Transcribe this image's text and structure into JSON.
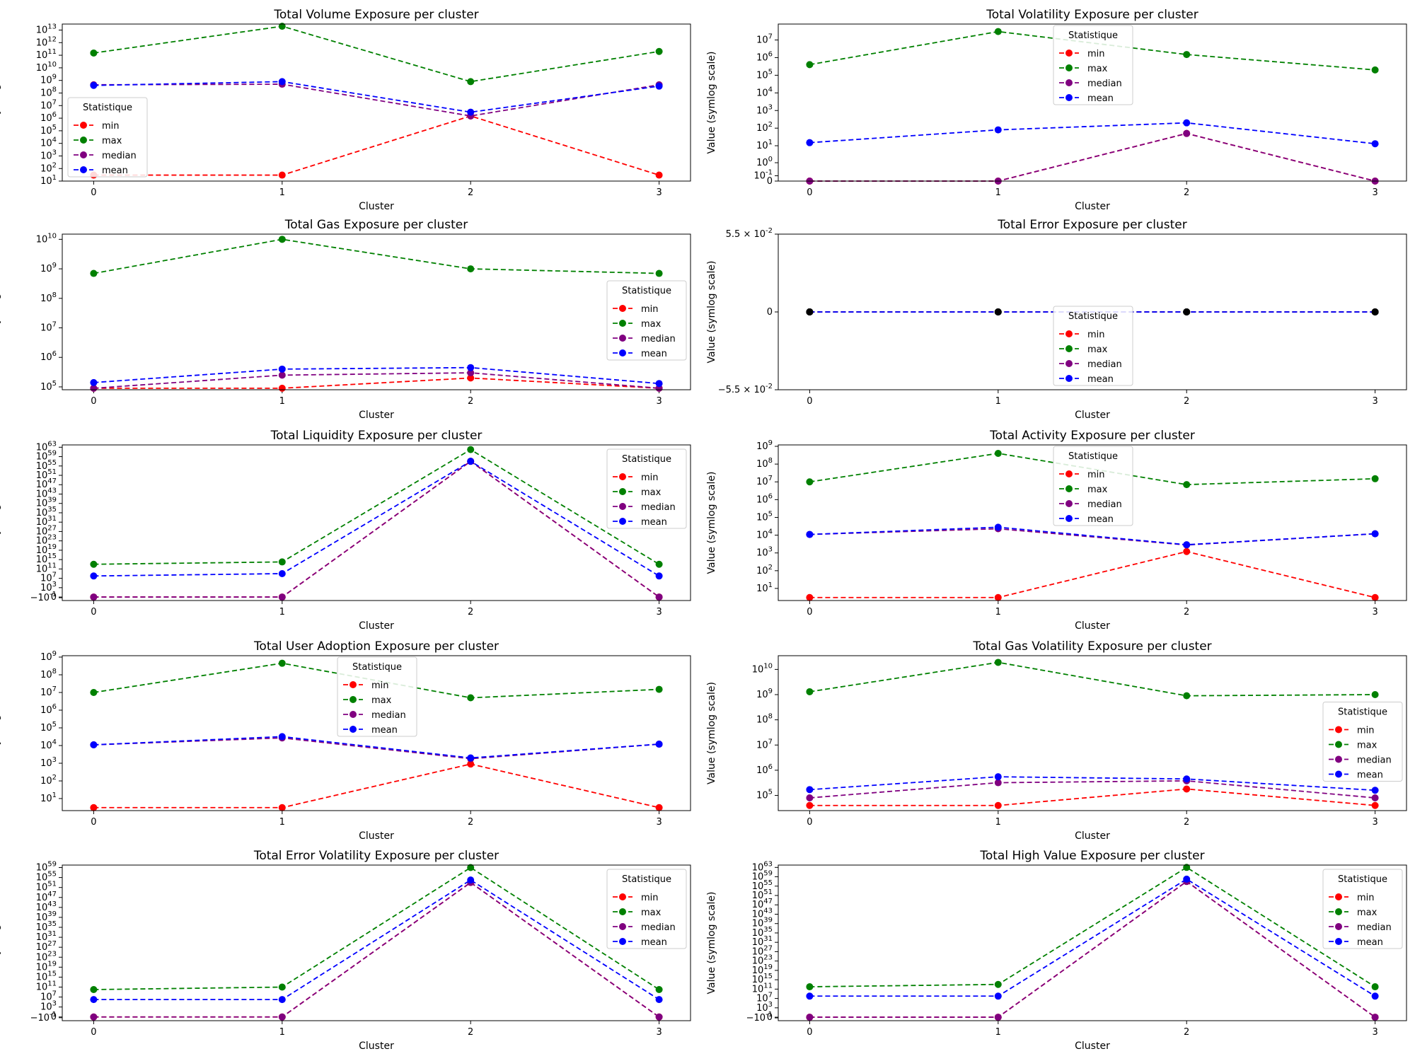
{
  "legend_title": "Statistique",
  "stat_names": [
    "min",
    "max",
    "median",
    "mean"
  ],
  "colors": {
    "min": "#ff0000",
    "max": "#008000",
    "median": "#800080",
    "mean": "#0000ff"
  },
  "chart_data": [
    {
      "type": "line",
      "title": "Total Volume Exposure per cluster",
      "xlabel": "Cluster",
      "ylabel": "Value (symlog scale)",
      "x": [
        0,
        1,
        2,
        3
      ],
      "yscale": "symlog",
      "ylim": [
        10,
        30000000000000
      ],
      "yticks": [
        "10^1",
        "10^2",
        "10^3",
        "10^4",
        "10^5",
        "10^6",
        "10^7",
        "10^8",
        "10^9",
        "10^10",
        "10^11",
        "10^12",
        "10^13"
      ],
      "legend_loc": "lower-left",
      "series": [
        {
          "name": "min",
          "values": [
            30,
            30,
            1500000,
            30
          ]
        },
        {
          "name": "max",
          "values": [
            150000000000,
            20000000000000,
            800000000,
            200000000000
          ]
        },
        {
          "name": "median",
          "values": [
            450000000,
            500000000,
            1500000,
            450000000
          ]
        },
        {
          "name": "mean",
          "values": [
            400000000,
            800000000,
            3000000,
            350000000
          ]
        }
      ]
    },
    {
      "type": "line",
      "title": "Total Volatility Exposure per cluster",
      "xlabel": "Cluster",
      "ylabel": "Value (symlog scale)",
      "x": [
        0,
        1,
        2,
        3
      ],
      "yscale": "symlog",
      "ylim": [
        0,
        80000000
      ],
      "yticks": [
        "0",
        "10^-1",
        "10^0",
        "10^1",
        "10^2",
        "10^3",
        "10^4",
        "10^5",
        "10^6",
        "10^7"
      ],
      "legend_loc": "top-center",
      "series": [
        {
          "name": "min",
          "values": [
            0,
            0,
            50,
            0
          ]
        },
        {
          "name": "max",
          "values": [
            400000,
            30000000,
            1500000,
            200000
          ]
        },
        {
          "name": "median",
          "values": [
            0,
            0,
            50,
            0
          ]
        },
        {
          "name": "mean",
          "values": [
            15,
            80,
            200,
            13
          ]
        }
      ]
    },
    {
      "type": "line",
      "title": "Total Gas Exposure per cluster",
      "xlabel": "Cluster",
      "ylabel": "Value (symlog scale)",
      "x": [
        0,
        1,
        2,
        3
      ],
      "yscale": "symlog",
      "ylim": [
        80000,
        15000000000
      ],
      "yticks": [
        "10^5",
        "10^6",
        "10^7",
        "10^8",
        "10^9",
        "10^10"
      ],
      "legend_loc": "center-right",
      "series": [
        {
          "name": "min",
          "values": [
            90000,
            90000,
            200000,
            90000
          ]
        },
        {
          "name": "max",
          "values": [
            700000000,
            10000000000,
            1000000000,
            700000000
          ]
        },
        {
          "name": "median",
          "values": [
            90000,
            250000,
            300000,
            90000
          ]
        },
        {
          "name": "mean",
          "values": [
            140000,
            400000,
            450000,
            130000
          ]
        }
      ]
    },
    {
      "type": "line",
      "title": "Total Error Exposure per cluster",
      "xlabel": "Cluster",
      "ylabel": "Value (symlog scale)",
      "x": [
        0,
        1,
        2,
        3
      ],
      "yscale": "linear",
      "ylim": [
        -0.055,
        0.055
      ],
      "yticks": [
        "−5.5 × 10^-2",
        "0",
        "5.5 × 10^-2"
      ],
      "legend_loc": "lower-center",
      "series": [
        {
          "name": "min",
          "values": [
            0,
            0,
            0,
            0
          ]
        },
        {
          "name": "max",
          "values": [
            0,
            0,
            0,
            0
          ]
        },
        {
          "name": "median",
          "values": [
            0,
            0,
            0,
            0
          ]
        },
        {
          "name": "mean",
          "values": [
            0,
            0,
            0,
            0
          ]
        }
      ]
    },
    {
      "type": "line",
      "title": "Total Liquidity Exposure per cluster",
      "xlabel": "Cluster",
      "ylabel": "Value (symlog scale)",
      "x": [
        0,
        1,
        2,
        3
      ],
      "yscale": "symlog",
      "ylim": [
        -3,
        1e+64
      ],
      "yticks": [
        "−10^-1",
        "0",
        "10^3",
        "10^7",
        "10^11",
        "10^15",
        "10^19",
        "10^23",
        "10^27",
        "10^31",
        "10^35",
        "10^39",
        "10^43",
        "10^47",
        "10^51",
        "10^55",
        "10^59",
        "10^63"
      ],
      "legend_loc": "top-right",
      "series": [
        {
          "name": "min",
          "values": [
            0,
            0,
            1e+57,
            0
          ]
        },
        {
          "name": "max",
          "values": [
            10000000000000.0,
            100000000000000.0,
            1e+62,
            10000000000000.0
          ]
        },
        {
          "name": "median",
          "values": [
            0,
            0,
            1e+57,
            0
          ]
        },
        {
          "name": "mean",
          "values": [
            100000000.0,
            1000000000.0,
            1e+57,
            100000000.0
          ]
        }
      ]
    },
    {
      "type": "line",
      "title": "Total Activity Exposure per cluster",
      "xlabel": "Cluster",
      "ylabel": "Value (symlog scale)",
      "x": [
        0,
        1,
        2,
        3
      ],
      "yscale": "symlog",
      "ylim": [
        2,
        1200000000
      ],
      "yticks": [
        "10^1",
        "10^2",
        "10^3",
        "10^4",
        "10^5",
        "10^6",
        "10^7",
        "10^8",
        "10^9"
      ],
      "legend_loc": "top-center",
      "series": [
        {
          "name": "min",
          "values": [
            3,
            3,
            1200,
            3
          ]
        },
        {
          "name": "max",
          "values": [
            10000000,
            400000000,
            7000000,
            15000000
          ]
        },
        {
          "name": "median",
          "values": [
            11000,
            23000,
            2800,
            12000
          ]
        },
        {
          "name": "mean",
          "values": [
            11000,
            28000,
            2900,
            12000
          ]
        }
      ]
    },
    {
      "type": "line",
      "title": "Total User Adoption Exposure per cluster",
      "xlabel": "Cluster",
      "ylabel": "Value (symlog scale)",
      "x": [
        0,
        1,
        2,
        3
      ],
      "yscale": "symlog",
      "ylim": [
        2,
        1200000000
      ],
      "yticks": [
        "10^1",
        "10^2",
        "10^3",
        "10^4",
        "10^5",
        "10^6",
        "10^7",
        "10^8",
        "10^9"
      ],
      "legend_loc": "top-center",
      "series": [
        {
          "name": "min",
          "values": [
            3,
            3,
            900,
            3
          ]
        },
        {
          "name": "max",
          "values": [
            10000000,
            450000000,
            5000000,
            15000000
          ]
        },
        {
          "name": "median",
          "values": [
            11000,
            27000,
            1800,
            12000
          ]
        },
        {
          "name": "mean",
          "values": [
            11000,
            32000,
            2000,
            12000
          ]
        }
      ]
    },
    {
      "type": "line",
      "title": "Total Gas Volatility Exposure per cluster",
      "xlabel": "Cluster",
      "ylabel": "Value (symlog scale)",
      "x": [
        0,
        1,
        2,
        3
      ],
      "yscale": "symlog",
      "ylim": [
        25000,
        35000000000
      ],
      "yticks": [
        "10^5",
        "10^6",
        "10^7",
        "10^8",
        "10^9",
        "10^10"
      ],
      "legend_loc": "center-right",
      "series": [
        {
          "name": "min",
          "values": [
            40000,
            40000,
            180000,
            40000
          ]
        },
        {
          "name": "max",
          "values": [
            1300000000,
            19000000000,
            900000000,
            1000000000
          ]
        },
        {
          "name": "median",
          "values": [
            80000,
            320000,
            380000,
            80000
          ]
        },
        {
          "name": "mean",
          "values": [
            170000,
            550000,
            450000,
            160000
          ]
        }
      ]
    },
    {
      "type": "line",
      "title": "Total Error Volatility Exposure per cluster",
      "xlabel": "Cluster",
      "ylabel": "Value (symlog scale)",
      "x": [
        0,
        1,
        2,
        3
      ],
      "yscale": "symlog",
      "ylim": [
        -3,
        1e+60
      ],
      "yticks": [
        "−10^-1",
        "0",
        "10^3",
        "10^7",
        "10^11",
        "10^15",
        "10^19",
        "10^23",
        "10^27",
        "10^31",
        "10^35",
        "10^39",
        "10^43",
        "10^47",
        "10^51",
        "10^55",
        "10^59"
      ],
      "legend_loc": "top-right",
      "series": [
        {
          "name": "min",
          "values": [
            0,
            0,
            1e+53,
            0
          ]
        },
        {
          "name": "max",
          "values": [
            10000000000.0,
            100000000000.0,
            1e+59,
            10000000000.0
          ]
        },
        {
          "name": "median",
          "values": [
            0,
            0,
            1e+53,
            0
          ]
        },
        {
          "name": "mean",
          "values": [
            1000000.0,
            1000000.0,
            1e+54,
            1000000.0
          ]
        }
      ]
    },
    {
      "type": "line",
      "title": "Total High Value Exposure per cluster",
      "xlabel": "Cluster",
      "ylabel": "Value (symlog scale)",
      "x": [
        0,
        1,
        2,
        3
      ],
      "yscale": "symlog",
      "ylim": [
        -3,
        1e+64
      ],
      "yticks": [
        "−10^-1",
        "0",
        "10^3",
        "10^7",
        "10^11",
        "10^15",
        "10^19",
        "10^23",
        "10^27",
        "10^31",
        "10^35",
        "10^39",
        "10^43",
        "10^47",
        "10^51",
        "10^55",
        "10^59",
        "10^63"
      ],
      "legend_loc": "top-right",
      "series": [
        {
          "name": "min",
          "values": [
            0,
            0,
            1e+57,
            0
          ]
        },
        {
          "name": "max",
          "values": [
            1000000000000.0,
            10000000000000.0,
            1e+63,
            1000000000000.0
          ]
        },
        {
          "name": "median",
          "values": [
            0,
            0,
            1e+57,
            0
          ]
        },
        {
          "name": "mean",
          "values": [
            100000000.0,
            100000000.0,
            1e+58,
            100000000.0
          ]
        }
      ]
    }
  ]
}
